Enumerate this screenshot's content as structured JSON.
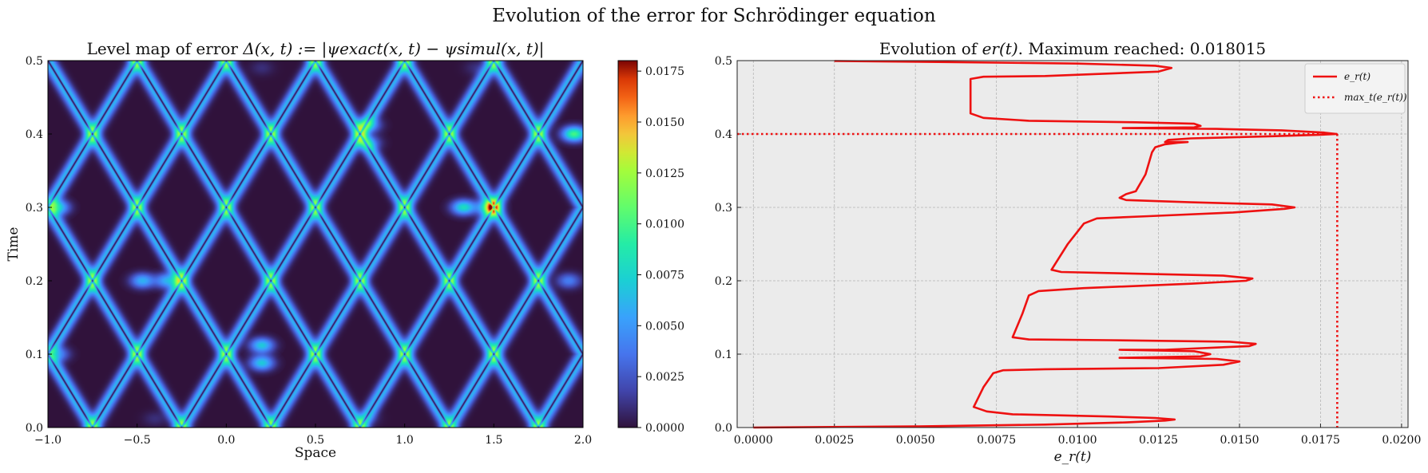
{
  "figure": {
    "suptitle": "Evolution of the error for Schrödinger equation"
  },
  "chart_data": [
    {
      "type": "heatmap",
      "title": "Level map of error Δ(x,t) := |ψ_exact(x,t) − ψ_simul(x,t)|",
      "title_parts": {
        "pre": "Level map of error ",
        "math": "Δ(x, t) := |ψexact(x, t) − ψsimul(x, t)|"
      },
      "xlabel": "Space",
      "ylabel": "Time",
      "xlim": [
        -1.0,
        2.0
      ],
      "ylim": [
        0.0,
        0.5
      ],
      "xticks": [
        "−1.0",
        "−0.5",
        "0.0",
        "0.5",
        "1.0",
        "1.5",
        "2.0"
      ],
      "yticks": [
        "0.0",
        "0.1",
        "0.2",
        "0.3",
        "0.4",
        "0.5"
      ],
      "colormap": "jet",
      "colorbar": {
        "range": [
          0.0,
          0.018015
        ],
        "ticks": [
          "0.0000",
          "0.0025",
          "0.0050",
          "0.0075",
          "0.0100",
          "0.0125",
          "0.0150",
          "0.0175"
        ]
      },
      "wave_speed": 2.5,
      "wave_sources": [
        -0.75,
        -0.25,
        0.25,
        0.75,
        1.25,
        1.75
      ],
      "hotspots": [
        {
          "x": -0.4,
          "t": 0.012,
          "v": 0.009
        },
        {
          "x": 0.8,
          "t": 0.012,
          "v": 0.009
        },
        {
          "x": -0.95,
          "t": 0.1,
          "v": 0.013
        },
        {
          "x": 0.2,
          "t": 0.112,
          "v": 0.015
        },
        {
          "x": 0.2,
          "t": 0.088,
          "v": 0.015
        },
        {
          "x": -0.47,
          "t": 0.2,
          "v": 0.014
        },
        {
          "x": -0.33,
          "t": 0.2,
          "v": 0.014
        },
        {
          "x": 1.92,
          "t": 0.2,
          "v": 0.012
        },
        {
          "x": -0.95,
          "t": 0.3,
          "v": 0.016
        },
        {
          "x": 1.33,
          "t": 0.3,
          "v": 0.016
        },
        {
          "x": 1.47,
          "t": 0.3,
          "v": 0.016
        },
        {
          "x": 0.8,
          "t": 0.412,
          "v": 0.013
        },
        {
          "x": 0.8,
          "t": 0.388,
          "v": 0.012
        },
        {
          "x": 1.95,
          "t": 0.4,
          "v": 0.018
        },
        {
          "x": 0.2,
          "t": 0.49,
          "v": 0.009
        },
        {
          "x": 1.4,
          "t": 0.49,
          "v": 0.009
        }
      ]
    },
    {
      "type": "line",
      "title": "Evolution of e_r(t). Maximum reached: 0.018015",
      "title_parts": {
        "pre": "Evolution of ",
        "math": "er(t)",
        "post": ". Maximum reached: 0.018015"
      },
      "xlabel": "e_r(t)",
      "ylabel": "",
      "xlim": [
        -0.0005,
        0.0202
      ],
      "ylim": [
        0.0,
        0.5
      ],
      "xticks": [
        "0.0000",
        "0.0025",
        "0.0050",
        "0.0075",
        "0.0100",
        "0.0125",
        "0.0150",
        "0.0175",
        "0.0200"
      ],
      "yticks": [
        "0.0",
        "0.1",
        "0.2",
        "0.3",
        "0.4",
        "0.5"
      ],
      "grid": true,
      "legend": {
        "position": "top-right",
        "entries": [
          "e_r(t)",
          "max_t(e_r(t))"
        ]
      },
      "colors": {
        "line": "#ee1111",
        "max": "#ee1111",
        "axes_bg": "#ebebeb"
      },
      "max": {
        "value": 0.018015,
        "t": 0.4
      },
      "series": [
        {
          "name": "e_r(t)",
          "points": [
            [
              0.0,
              0.0
            ],
            [
              0.005,
              0.0015
            ],
            [
              0.009,
              0.004
            ],
            [
              0.0115,
              0.007
            ],
            [
              0.0127,
              0.0095
            ],
            [
              0.013,
              0.011
            ],
            [
              0.0124,
              0.013
            ],
            [
              0.011,
              0.015
            ],
            [
              0.008,
              0.018
            ],
            [
              0.0072,
              0.022
            ],
            [
              0.0068,
              0.028
            ],
            [
              0.0071,
              0.055
            ],
            [
              0.0074,
              0.074
            ],
            [
              0.0077,
              0.078
            ],
            [
              0.009,
              0.0795
            ],
            [
              0.0125,
              0.081
            ],
            [
              0.0145,
              0.0855
            ],
            [
              0.015,
              0.09
            ],
            [
              0.0143,
              0.0935
            ],
            [
              0.0113,
              0.095
            ],
            [
              0.0114,
              0.095
            ],
            [
              0.0138,
              0.097
            ],
            [
              0.0141,
              0.1
            ],
            [
              0.0136,
              0.104
            ],
            [
              0.0113,
              0.106
            ],
            [
              0.0127,
              0.106
            ],
            [
              0.0153,
              0.111
            ],
            [
              0.0155,
              0.114
            ],
            [
              0.0147,
              0.117
            ],
            [
              0.011,
              0.119
            ],
            [
              0.0085,
              0.12
            ],
            [
              0.008,
              0.123
            ],
            [
              0.0083,
              0.155
            ],
            [
              0.0085,
              0.18
            ],
            [
              0.0088,
              0.186
            ],
            [
              0.0102,
              0.19
            ],
            [
              0.0135,
              0.196
            ],
            [
              0.0152,
              0.2
            ],
            [
              0.0154,
              0.203
            ],
            [
              0.0145,
              0.207
            ],
            [
              0.0115,
              0.21
            ],
            [
              0.0095,
              0.212
            ],
            [
              0.0092,
              0.215
            ],
            [
              0.0097,
              0.25
            ],
            [
              0.0102,
              0.278
            ],
            [
              0.0106,
              0.285
            ],
            [
              0.0122,
              0.288
            ],
            [
              0.0148,
              0.293
            ],
            [
              0.0164,
              0.298
            ],
            [
              0.0167,
              0.3
            ],
            [
              0.016,
              0.304
            ],
            [
              0.0135,
              0.307
            ],
            [
              0.0115,
              0.31
            ],
            [
              0.0113,
              0.313
            ],
            [
              0.0115,
              0.318
            ],
            [
              0.0118,
              0.322
            ],
            [
              0.0121,
              0.345
            ],
            [
              0.0123,
              0.375
            ],
            [
              0.0124,
              0.382
            ],
            [
              0.0127,
              0.386
            ],
            [
              0.0131,
              0.388
            ],
            [
              0.0134,
              0.389
            ],
            [
              0.0127,
              0.389
            ],
            [
              0.0128,
              0.392
            ],
            [
              0.0135,
              0.394
            ],
            [
              0.016,
              0.397
            ],
            [
              0.0175,
              0.399
            ],
            [
              0.018,
              0.4
            ],
            [
              0.0176,
              0.402
            ],
            [
              0.0163,
              0.405
            ],
            [
              0.0143,
              0.407
            ],
            [
              0.0114,
              0.408
            ],
            [
              0.0136,
              0.409
            ],
            [
              0.0138,
              0.411
            ],
            [
              0.0136,
              0.414
            ],
            [
              0.0118,
              0.416
            ],
            [
              0.0085,
              0.418
            ],
            [
              0.0071,
              0.422
            ],
            [
              0.0067,
              0.428
            ],
            [
              0.0067,
              0.465
            ],
            [
              0.0067,
              0.475
            ],
            [
              0.0071,
              0.478
            ],
            [
              0.009,
              0.479
            ],
            [
              0.0125,
              0.485
            ],
            [
              0.0129,
              0.49
            ],
            [
              0.0124,
              0.493
            ],
            [
              0.01,
              0.496
            ],
            [
              0.006,
              0.498
            ],
            [
              0.0025,
              0.4995
            ]
          ]
        }
      ]
    }
  ]
}
